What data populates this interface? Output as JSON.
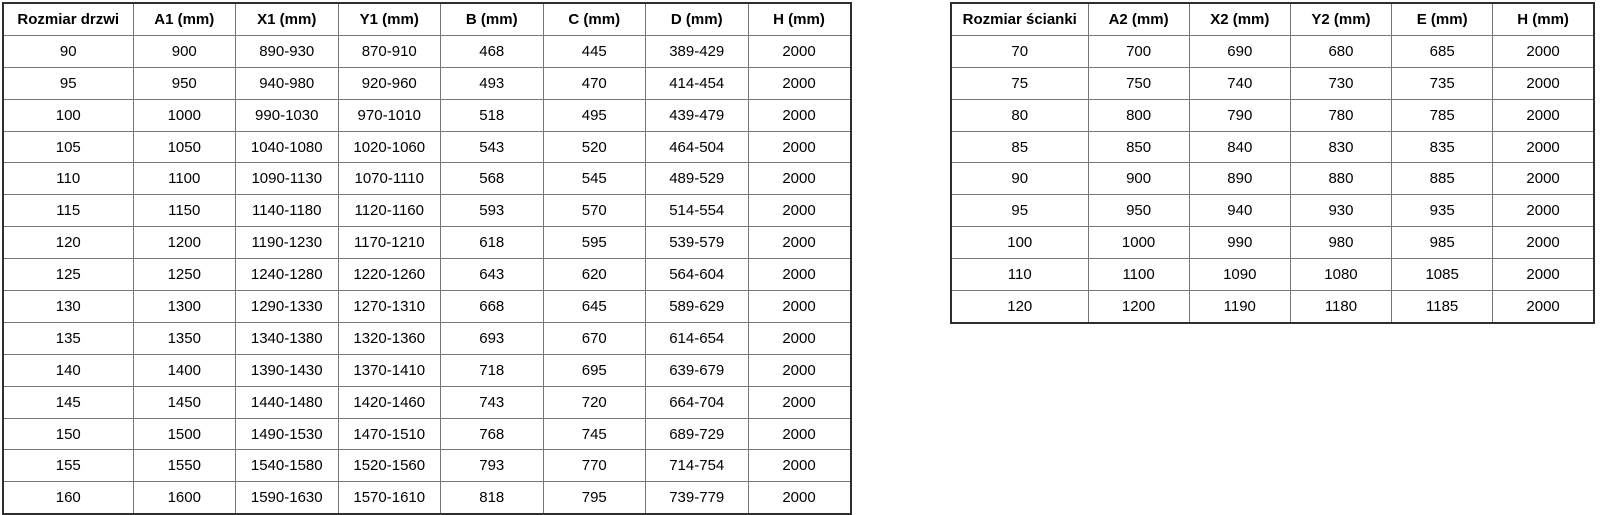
{
  "colors": {
    "background": "#ffffff",
    "text": "#000000",
    "inner_border": "#767676",
    "outer_border": "#2e2e2e"
  },
  "tables": [
    {
      "title": "Rozmiar drzwi",
      "headers": [
        "Rozmiar drzwi",
        "A1 (mm)",
        "X1 (mm)",
        "Y1 (mm)",
        "B (mm)",
        "C (mm)",
        "D (mm)",
        "H (mm)"
      ],
      "rows": [
        [
          "90",
          "900",
          "890-930",
          "870-910",
          "468",
          "445",
          "389-429",
          "2000"
        ],
        [
          "95",
          "950",
          "940-980",
          "920-960",
          "493",
          "470",
          "414-454",
          "2000"
        ],
        [
          "100",
          "1000",
          "990-1030",
          "970-1010",
          "518",
          "495",
          "439-479",
          "2000"
        ],
        [
          "105",
          "1050",
          "1040-1080",
          "1020-1060",
          "543",
          "520",
          "464-504",
          "2000"
        ],
        [
          "110",
          "1100",
          "1090-1130",
          "1070-1110",
          "568",
          "545",
          "489-529",
          "2000"
        ],
        [
          "115",
          "1150",
          "1140-1180",
          "1120-1160",
          "593",
          "570",
          "514-554",
          "2000"
        ],
        [
          "120",
          "1200",
          "1190-1230",
          "1170-1210",
          "618",
          "595",
          "539-579",
          "2000"
        ],
        [
          "125",
          "1250",
          "1240-1280",
          "1220-1260",
          "643",
          "620",
          "564-604",
          "2000"
        ],
        [
          "130",
          "1300",
          "1290-1330",
          "1270-1310",
          "668",
          "645",
          "589-629",
          "2000"
        ],
        [
          "135",
          "1350",
          "1340-1380",
          "1320-1360",
          "693",
          "670",
          "614-654",
          "2000"
        ],
        [
          "140",
          "1400",
          "1390-1430",
          "1370-1410",
          "718",
          "695",
          "639-679",
          "2000"
        ],
        [
          "145",
          "1450",
          "1440-1480",
          "1420-1460",
          "743",
          "720",
          "664-704",
          "2000"
        ],
        [
          "150",
          "1500",
          "1490-1530",
          "1470-1510",
          "768",
          "745",
          "689-729",
          "2000"
        ],
        [
          "155",
          "1550",
          "1540-1580",
          "1520-1560",
          "793",
          "770",
          "714-754",
          "2000"
        ],
        [
          "160",
          "1600",
          "1590-1630",
          "1570-1610",
          "818",
          "795",
          "739-779",
          "2000"
        ]
      ]
    },
    {
      "title": "Rozmiar ścianki",
      "headers": [
        "Rozmiar ścianki",
        "A2 (mm)",
        "X2 (mm)",
        "Y2 (mm)",
        "E (mm)",
        "H (mm)"
      ],
      "rows": [
        [
          "70",
          "700",
          "690",
          "680",
          "685",
          "2000"
        ],
        [
          "75",
          "750",
          "740",
          "730",
          "735",
          "2000"
        ],
        [
          "80",
          "800",
          "790",
          "780",
          "785",
          "2000"
        ],
        [
          "85",
          "850",
          "840",
          "830",
          "835",
          "2000"
        ],
        [
          "90",
          "900",
          "890",
          "880",
          "885",
          "2000"
        ],
        [
          "95",
          "950",
          "940",
          "930",
          "935",
          "2000"
        ],
        [
          "100",
          "1000",
          "990",
          "980",
          "985",
          "2000"
        ],
        [
          "110",
          "1100",
          "1090",
          "1080",
          "1085",
          "2000"
        ],
        [
          "120",
          "1200",
          "1190",
          "1180",
          "1185",
          "2000"
        ]
      ]
    }
  ]
}
